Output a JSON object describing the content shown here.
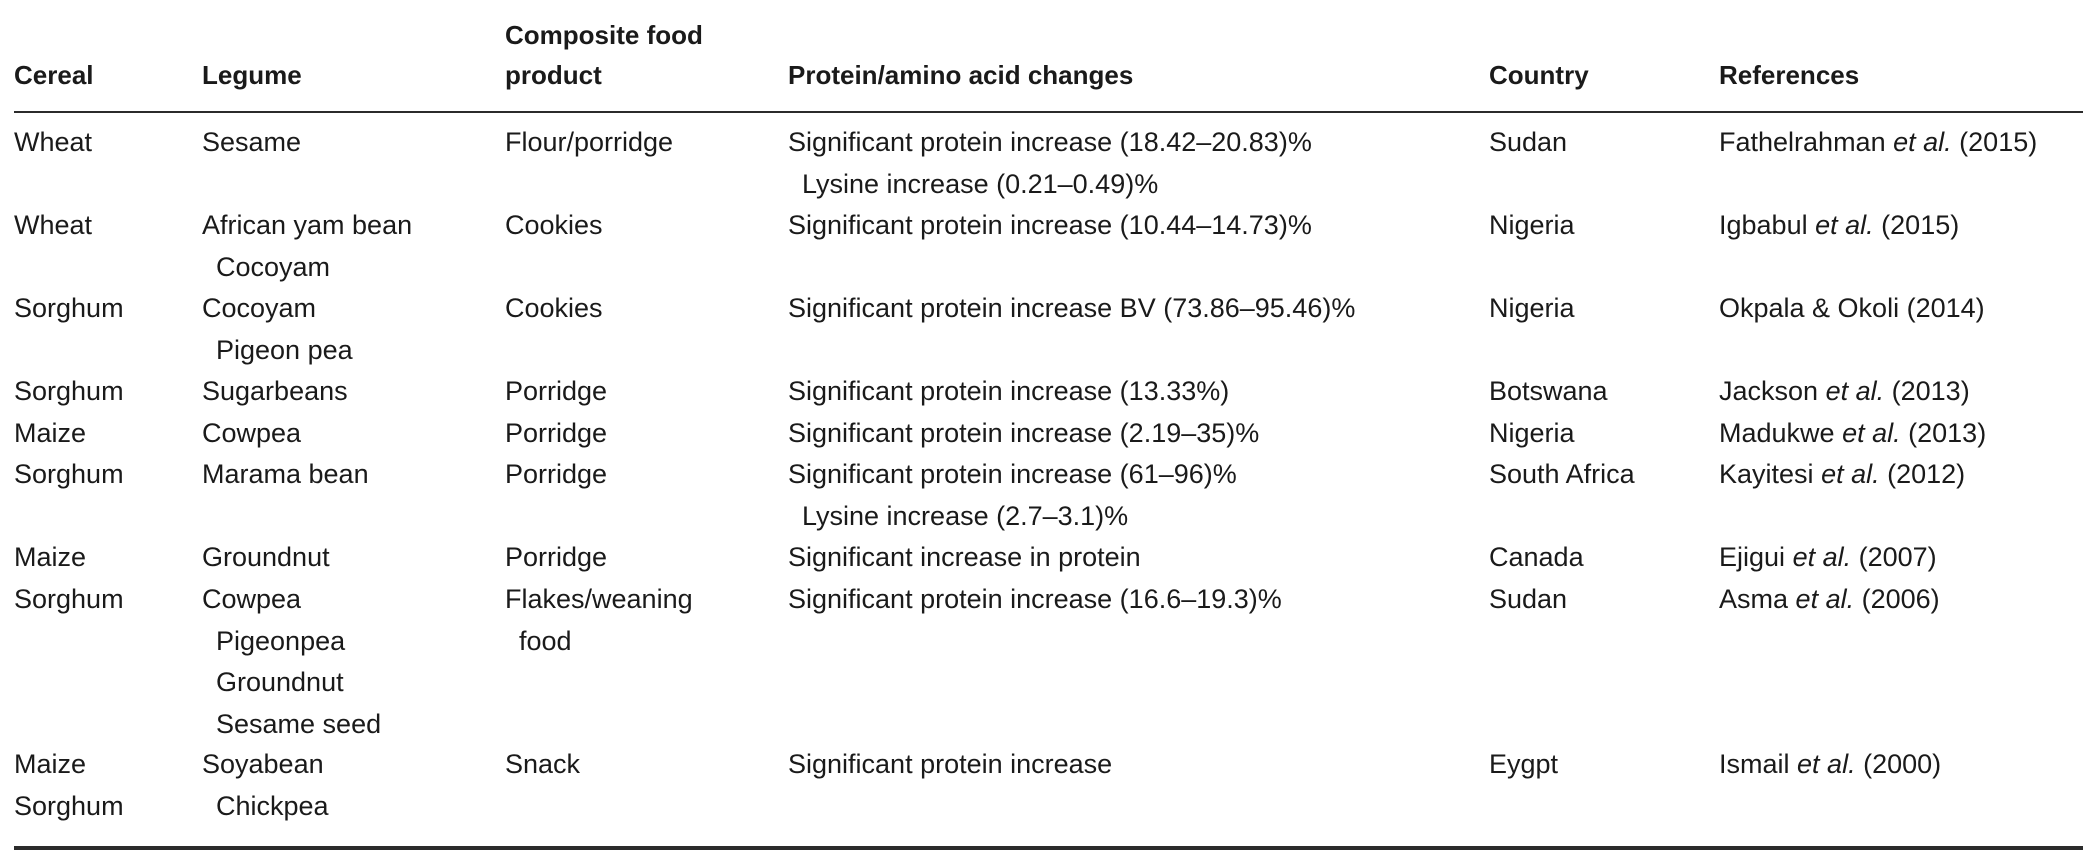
{
  "table": {
    "headers": {
      "cereal": "Cereal",
      "legume": "Legume",
      "composite_line1": "Composite food",
      "composite_line2": "product",
      "protein": "Protein/amino acid changes",
      "country": "Country",
      "references": "References"
    },
    "rows": [
      {
        "cereal": [
          "Wheat"
        ],
        "legume": [
          "Sesame"
        ],
        "product": [
          "Flour/porridge"
        ],
        "protein": [
          "Significant protein increase (18.42–20.83)%",
          "Lysine increase (0.21–0.49)%"
        ],
        "country": "Sudan",
        "ref_author": "Fathelrahman",
        "ref_etal": "et al.",
        "ref_year": "(2015)"
      },
      {
        "cereal": [
          "Wheat"
        ],
        "legume": [
          "African yam bean",
          "Cocoyam"
        ],
        "product": [
          "Cookies"
        ],
        "protein": [
          "Significant protein increase (10.44–14.73)%"
        ],
        "country": "Nigeria",
        "ref_author": "Igbabul",
        "ref_etal": "et al.",
        "ref_year": "(2015)"
      },
      {
        "cereal": [
          "Sorghum"
        ],
        "legume": [
          "Cocoyam",
          "Pigeon pea"
        ],
        "product": [
          "Cookies"
        ],
        "protein": [
          "Significant protein increase BV (73.86–95.46)%"
        ],
        "country": "Nigeria",
        "ref_author": "Okpala & Okoli (2014)",
        "ref_etal": "",
        "ref_year": ""
      },
      {
        "cereal": [
          "Sorghum"
        ],
        "legume": [
          "Sugarbeans"
        ],
        "product": [
          "Porridge"
        ],
        "protein": [
          "Significant protein increase (13.33%)"
        ],
        "country": "Botswana",
        "ref_author": "Jackson",
        "ref_etal": "et al.",
        "ref_year": "(2013)"
      },
      {
        "cereal": [
          "Maize"
        ],
        "legume": [
          "Cowpea"
        ],
        "product": [
          "Porridge"
        ],
        "protein": [
          "Significant protein increase (2.19–35)%"
        ],
        "country": "Nigeria",
        "ref_author": "Madukwe",
        "ref_etal": "et al.",
        "ref_year": "(2013)"
      },
      {
        "cereal": [
          "Sorghum"
        ],
        "legume": [
          "Marama bean"
        ],
        "product": [
          "Porridge"
        ],
        "protein": [
          "Significant protein increase (61–96)%",
          "Lysine increase (2.7–3.1)%"
        ],
        "country": "South Africa",
        "ref_author": "Kayitesi",
        "ref_etal": "et al.",
        "ref_year": "(2012)"
      },
      {
        "cereal": [
          "Maize"
        ],
        "legume": [
          "Groundnut"
        ],
        "product": [
          "Porridge"
        ],
        "protein": [
          "Significant increase in protein"
        ],
        "country": "Canada",
        "ref_author": "Ejigui",
        "ref_etal": "et al.",
        "ref_year": "(2007)"
      },
      {
        "cereal": [
          "Sorghum"
        ],
        "legume": [
          "Cowpea",
          "Pigeonpea",
          "Groundnut",
          "Sesame seed"
        ],
        "product": [
          "Flakes/weaning",
          "food"
        ],
        "protein": [
          "Significant protein increase (16.6–19.3)%"
        ],
        "country": "Sudan",
        "ref_author": "Asma",
        "ref_etal": "et al.",
        "ref_year": "(2006)"
      },
      {
        "cereal": [
          "Maize",
          "Sorghum"
        ],
        "legume": [
          "Soyabean",
          "Chickpea"
        ],
        "product": [
          "Snack"
        ],
        "protein": [
          "Significant protein increase"
        ],
        "country": "Eygpt",
        "ref_author": "Ismail",
        "ref_etal": "et al.",
        "ref_year": "(2000)"
      }
    ]
  }
}
